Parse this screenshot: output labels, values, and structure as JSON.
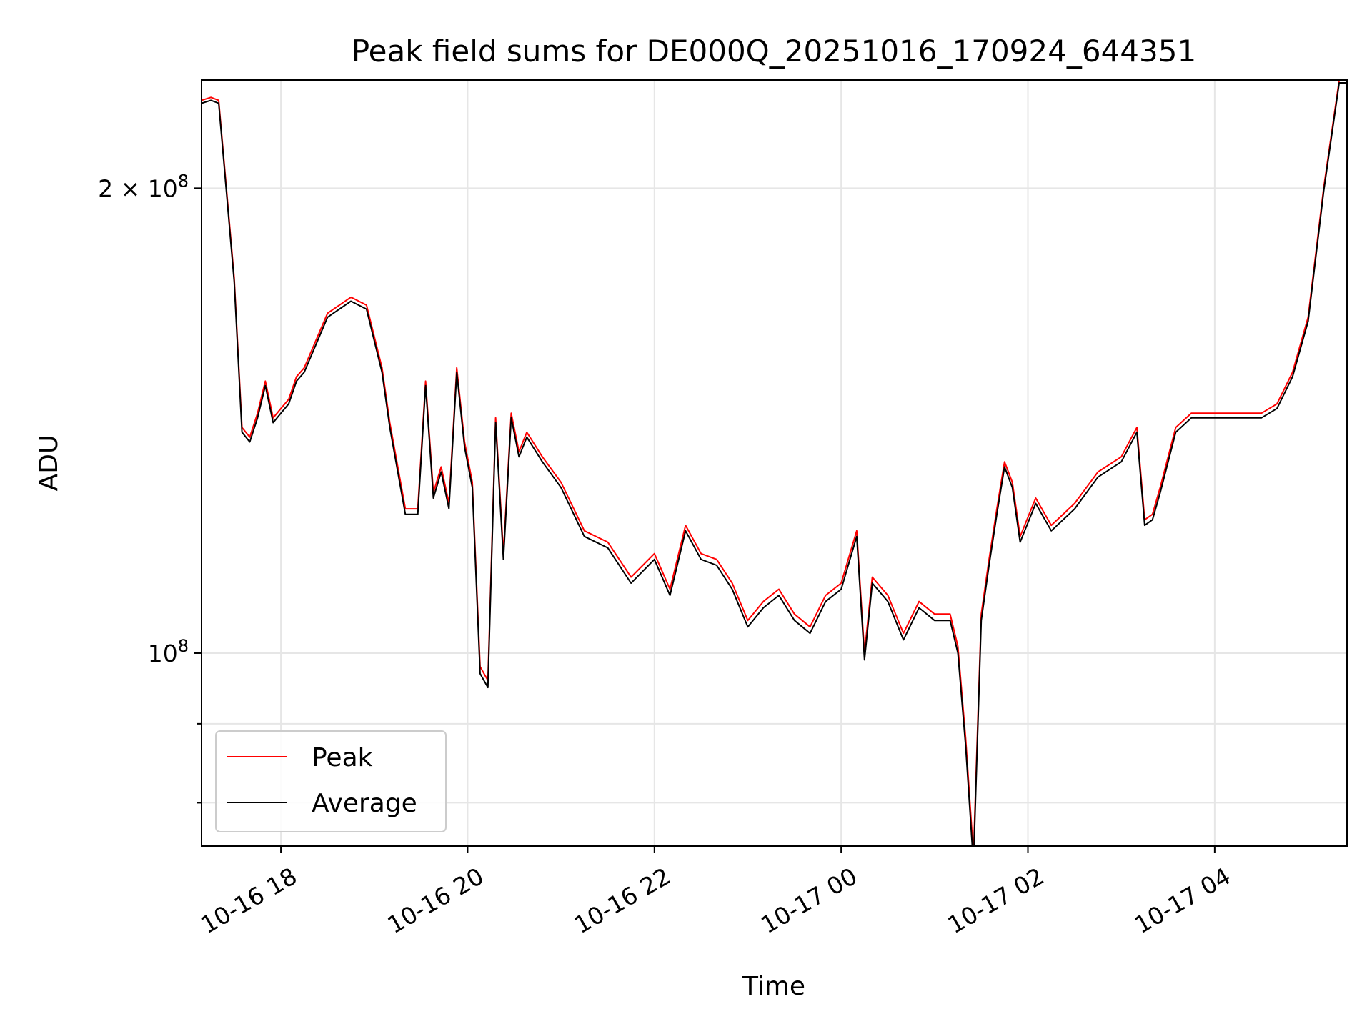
{
  "chart_data": {
    "type": "line",
    "title": "Peak field sums for DE000Q_20251016_170924_644351",
    "xlabel": "Time",
    "ylabel": "ADU",
    "yscale": "log",
    "grid": true,
    "legend_position": "lower-left",
    "xlim": [
      "2025-10-16 17:09",
      "2025-10-17 05:25"
    ],
    "ylim": [
      75000000,
      235000000
    ],
    "x_ticks": [
      {
        "value": "2025-10-16 18:00",
        "label": "10-16 18"
      },
      {
        "value": "2025-10-16 20:00",
        "label": "10-16 20"
      },
      {
        "value": "2025-10-16 22:00",
        "label": "10-16 22"
      },
      {
        "value": "2025-10-17 00:00",
        "label": "10-17 00"
      },
      {
        "value": "2025-10-17 02:00",
        "label": "10-17 02"
      },
      {
        "value": "2025-10-17 04:00",
        "label": "10-17 04"
      }
    ],
    "y_ticks": [
      {
        "value": 100000000,
        "base": "10",
        "exp": "8",
        "mantissa": ""
      },
      {
        "value": 200000000,
        "base": "10",
        "exp": "8",
        "mantissa": "2 × "
      }
    ],
    "y_minor_ticks": [
      80000000,
      90000000
    ],
    "x": [
      "2025-10-16 17:09",
      "2025-10-16 17:15",
      "2025-10-16 17:20",
      "2025-10-16 17:25",
      "2025-10-16 17:30",
      "2025-10-16 17:35",
      "2025-10-16 17:40",
      "2025-10-16 17:45",
      "2025-10-16 17:50",
      "2025-10-16 17:55",
      "2025-10-16 18:00",
      "2025-10-16 18:05",
      "2025-10-16 18:10",
      "2025-10-16 18:15",
      "2025-10-16 18:30",
      "2025-10-16 18:45",
      "2025-10-16 18:55",
      "2025-10-16 19:05",
      "2025-10-16 19:10",
      "2025-10-16 19:20",
      "2025-10-16 19:28",
      "2025-10-16 19:33",
      "2025-10-16 19:38",
      "2025-10-16 19:43",
      "2025-10-16 19:48",
      "2025-10-16 19:53",
      "2025-10-16 19:58",
      "2025-10-16 20:03",
      "2025-10-16 20:08",
      "2025-10-16 20:13",
      "2025-10-16 20:18",
      "2025-10-16 20:23",
      "2025-10-16 20:28",
      "2025-10-16 20:33",
      "2025-10-16 20:38",
      "2025-10-16 20:48",
      "2025-10-16 21:00",
      "2025-10-16 21:15",
      "2025-10-16 21:30",
      "2025-10-16 21:45",
      "2025-10-16 22:00",
      "2025-10-16 22:10",
      "2025-10-16 22:20",
      "2025-10-16 22:30",
      "2025-10-16 22:40",
      "2025-10-16 22:50",
      "2025-10-16 23:00",
      "2025-10-16 23:10",
      "2025-10-16 23:20",
      "2025-10-16 23:30",
      "2025-10-16 23:40",
      "2025-10-16 23:50",
      "2025-10-17 00:00",
      "2025-10-17 00:10",
      "2025-10-17 00:15",
      "2025-10-17 00:20",
      "2025-10-17 00:30",
      "2025-10-17 00:40",
      "2025-10-17 00:50",
      "2025-10-17 01:00",
      "2025-10-17 01:10",
      "2025-10-17 01:15",
      "2025-10-17 01:20",
      "2025-10-17 01:25",
      "2025-10-17 01:30",
      "2025-10-17 01:35",
      "2025-10-17 01:40",
      "2025-10-17 01:45",
      "2025-10-17 01:50",
      "2025-10-17 01:55",
      "2025-10-17 02:05",
      "2025-10-17 02:15",
      "2025-10-17 02:30",
      "2025-10-17 02:45",
      "2025-10-17 03:00",
      "2025-10-17 03:10",
      "2025-10-17 03:15",
      "2025-10-17 03:20",
      "2025-10-17 03:25",
      "2025-10-17 03:35",
      "2025-10-17 03:45",
      "2025-10-17 04:00",
      "2025-10-17 04:10",
      "2025-10-17 04:20",
      "2025-10-17 04:30",
      "2025-10-17 04:40",
      "2025-10-17 04:50",
      "2025-10-17 05:00",
      "2025-10-17 05:10",
      "2025-10-17 05:20",
      "2025-10-17 05:25"
    ],
    "series": [
      {
        "name": "Peak",
        "color": "#ff0000",
        "values": [
          228000000,
          229000000,
          228000000,
          200000000,
          175000000,
          140000000,
          138000000,
          143000000,
          150000000,
          142000000,
          144000000,
          146000000,
          151000000,
          153000000,
          166000000,
          170000000,
          168000000,
          153000000,
          141000000,
          124000000,
          124000000,
          150000000,
          127000000,
          132000000,
          125000000,
          153000000,
          137000000,
          129000000,
          98000000,
          96000000,
          142000000,
          116000000,
          143000000,
          135000000,
          139000000,
          134000000,
          129000000,
          120000000,
          118000000,
          112000000,
          116000000,
          110000000,
          121000000,
          116000000,
          115000000,
          111000000,
          105000000,
          108000000,
          110000000,
          106000000,
          104000000,
          109000000,
          111000000,
          120000000,
          100000000,
          112000000,
          109000000,
          103000000,
          108000000,
          106000000,
          106000000,
          101000000,
          88000000,
          74000000,
          106000000,
          115000000,
          124000000,
          133000000,
          129000000,
          119000000,
          126000000,
          121000000,
          125000000,
          131000000,
          134000000,
          140000000,
          122000000,
          123000000,
          128000000,
          140000000,
          143000000,
          143000000,
          143000000,
          143000000,
          143000000,
          145000000,
          152000000,
          165000000,
          200000000,
          235000000,
          235000000
        ]
      },
      {
        "name": "Average",
        "color": "#000000",
        "values": [
          227000000,
          228000000,
          227000000,
          199000000,
          174000000,
          139000000,
          137000000,
          142000000,
          149000000,
          141000000,
          143000000,
          145000000,
          150000000,
          152000000,
          165000000,
          169000000,
          167000000,
          152000000,
          140000000,
          123000000,
          123000000,
          149000000,
          126000000,
          131000000,
          124000000,
          152000000,
          136000000,
          128000000,
          97000000,
          95000000,
          141000000,
          115000000,
          142000000,
          134000000,
          138000000,
          133000000,
          128000000,
          119000000,
          117000000,
          111000000,
          115000000,
          109000000,
          120000000,
          115000000,
          114000000,
          110000000,
          104000000,
          107000000,
          109000000,
          105000000,
          103000000,
          108000000,
          110000000,
          119000000,
          99000000,
          111000000,
          108000000,
          102000000,
          107000000,
          105000000,
          105000000,
          100000000,
          87000000,
          73000000,
          105000000,
          114000000,
          123000000,
          132000000,
          128000000,
          118000000,
          125000000,
          120000000,
          124000000,
          130000000,
          133000000,
          139000000,
          121000000,
          122000000,
          127000000,
          139000000,
          142000000,
          142000000,
          142000000,
          142000000,
          142000000,
          144000000,
          151000000,
          164000000,
          199000000,
          234000000,
          234000000
        ]
      }
    ]
  }
}
